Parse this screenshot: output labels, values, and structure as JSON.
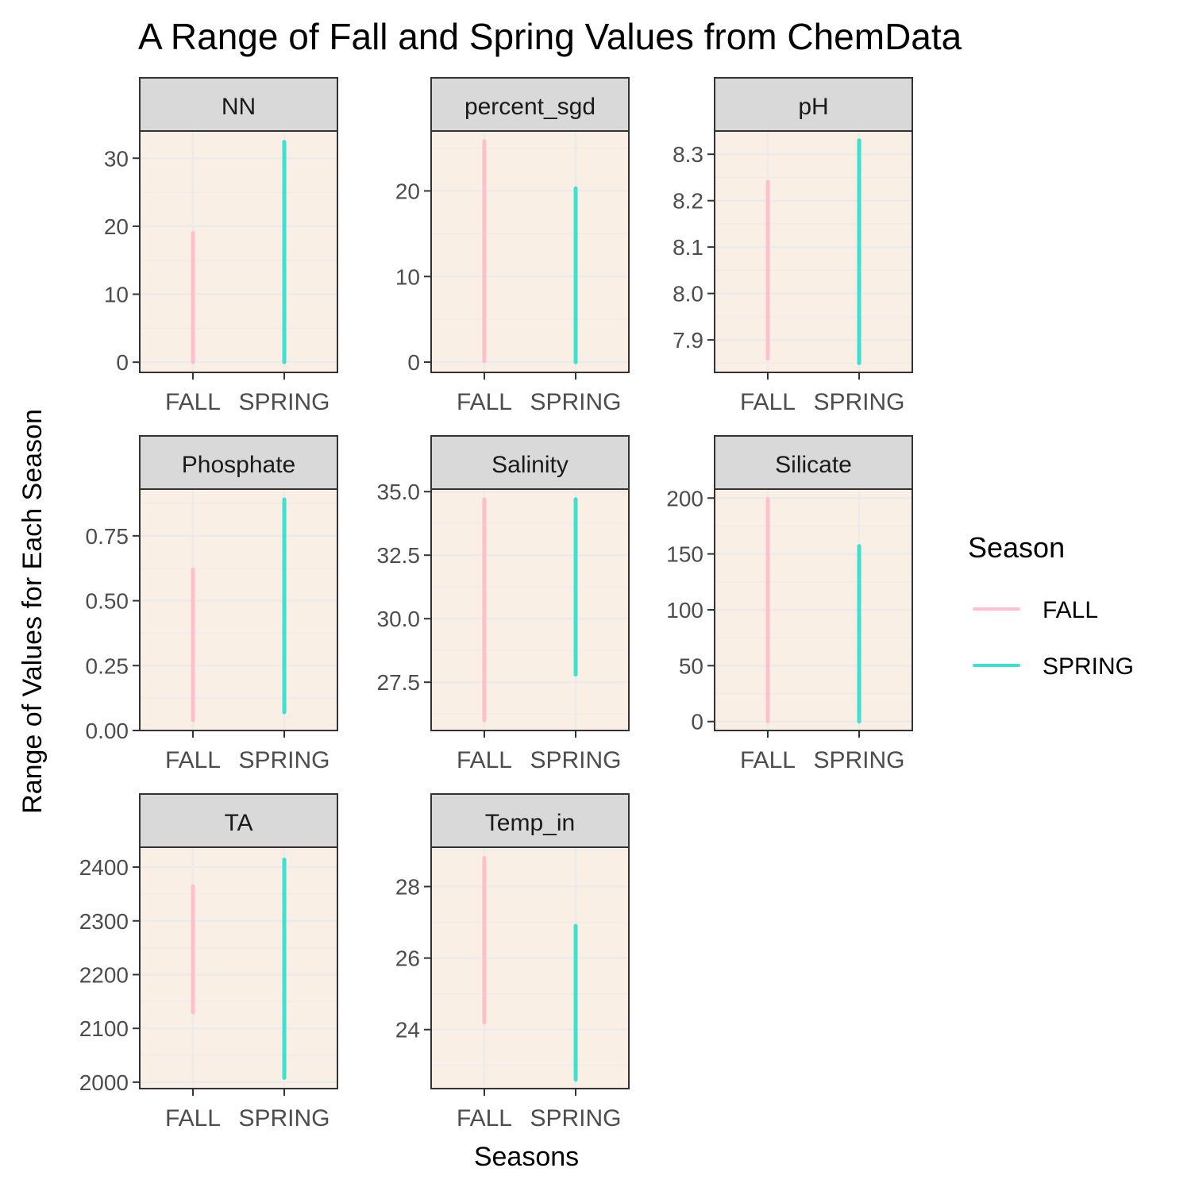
{
  "chart_data": {
    "type": "line",
    "title": "A Range of Fall and Spring Values from ChemData",
    "xlabel": "Seasons",
    "ylabel": "Range of Values for Each Season",
    "legend": {
      "title": "Season",
      "position": "right",
      "entries": [
        "FALL",
        "SPRING"
      ]
    },
    "categories": [
      "FALL",
      "SPRING"
    ],
    "colors": {
      "FALL": "#FFC0CB",
      "SPRING": "#40E0D0",
      "panel_bg": "#FAEFE5",
      "strip_bg": "#D9D9D9",
      "grid": "#EBEBEB"
    },
    "facets": [
      {
        "name": "NN",
        "ylim": [
          -1.5,
          34
        ],
        "yticks": [
          0,
          10,
          20,
          30
        ],
        "yticklabels": [
          "0",
          "10",
          "20",
          "30"
        ],
        "series": [
          {
            "name": "FALL",
            "min": 0,
            "max": 19
          },
          {
            "name": "SPRING",
            "min": 0,
            "max": 32.4
          }
        ]
      },
      {
        "name": "percent_sgd",
        "ylim": [
          -1.2,
          27
        ],
        "yticks": [
          0,
          10,
          20
        ],
        "yticklabels": [
          "0",
          "10",
          "20"
        ],
        "series": [
          {
            "name": "FALL",
            "min": 0.1,
            "max": 25.8
          },
          {
            "name": "SPRING",
            "min": 0,
            "max": 20.3
          }
        ]
      },
      {
        "name": "pH",
        "ylim": [
          7.83,
          8.35
        ],
        "yticks": [
          7.9,
          8.0,
          8.1,
          8.2,
          8.3
        ],
        "yticklabels": [
          "7.9",
          "8.0",
          "8.1",
          "8.2",
          "8.3"
        ],
        "series": [
          {
            "name": "FALL",
            "min": 7.86,
            "max": 8.24
          },
          {
            "name": "SPRING",
            "min": 7.85,
            "max": 8.33
          }
        ]
      },
      {
        "name": "Phosphate",
        "ylim": [
          0,
          0.93
        ],
        "yticks": [
          0,
          0.25,
          0.5,
          0.75
        ],
        "yticklabels": [
          "0.00",
          "0.25",
          "0.50",
          "0.75"
        ],
        "series": [
          {
            "name": "FALL",
            "min": 0.04,
            "max": 0.62
          },
          {
            "name": "SPRING",
            "min": 0.07,
            "max": 0.89
          }
        ]
      },
      {
        "name": "Salinity",
        "ylim": [
          25.6,
          35.1
        ],
        "yticks": [
          27.5,
          30.0,
          32.5,
          35.0
        ],
        "yticklabels": [
          "27.5",
          "30.0",
          "32.5",
          "35.0"
        ],
        "series": [
          {
            "name": "FALL",
            "min": 26.0,
            "max": 34.7
          },
          {
            "name": "SPRING",
            "min": 27.8,
            "max": 34.7
          }
        ]
      },
      {
        "name": "Silicate",
        "ylim": [
          -8,
          208
        ],
        "yticks": [
          0,
          50,
          100,
          150,
          200
        ],
        "yticklabels": [
          "0",
          "50",
          "100",
          "150",
          "200"
        ],
        "series": [
          {
            "name": "FALL",
            "min": 0,
            "max": 199
          },
          {
            "name": "SPRING",
            "min": 0,
            "max": 157
          }
        ]
      },
      {
        "name": "TA",
        "ylim": [
          1988,
          2437
        ],
        "yticks": [
          2000,
          2100,
          2200,
          2300,
          2400
        ],
        "yticklabels": [
          "2000",
          "2100",
          "2200",
          "2300",
          "2400"
        ],
        "series": [
          {
            "name": "FALL",
            "min": 2130,
            "max": 2365
          },
          {
            "name": "SPRING",
            "min": 2008,
            "max": 2414
          }
        ]
      },
      {
        "name": "Temp_in",
        "ylim": [
          22.35,
          29.1
        ],
        "yticks": [
          24,
          26,
          28
        ],
        "yticklabels": [
          "24",
          "26",
          "28"
        ],
        "series": [
          {
            "name": "FALL",
            "min": 24.2,
            "max": 28.8
          },
          {
            "name": "SPRING",
            "min": 22.6,
            "max": 26.9
          }
        ]
      }
    ]
  }
}
